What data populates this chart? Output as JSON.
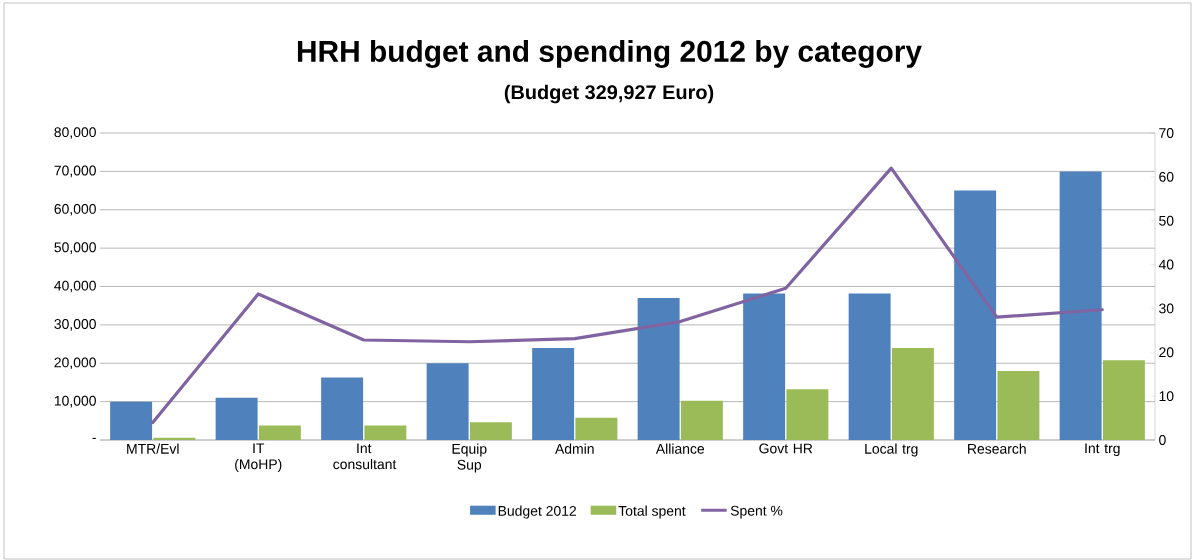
{
  "chart_data": {
    "type": "bar",
    "title": "HRH budget and spending 2012 by category",
    "subtitle": "(Budget 329,927 Euro)",
    "categories": [
      "MTR/Evl",
      "IT (MoHP)",
      "Int consultant",
      "Equip Sup",
      "Admin",
      "Alliance",
      "Govt HR",
      "Local trg",
      "Research",
      "Int trg"
    ],
    "series": [
      {
        "name": "Budget 2012",
        "color": "#4f81bd",
        "values": [
          10000,
          11000,
          16300,
          20000,
          24000,
          37000,
          38200,
          38200,
          65000,
          70000
        ]
      },
      {
        "name": "Total spent",
        "color": "#9bbb59",
        "values": [
          600,
          3800,
          3800,
          4600,
          5800,
          10200,
          13200,
          24000,
          18000,
          20800
        ]
      },
      {
        "name": "Spent %",
        "type": "line",
        "axis": "y2",
        "color": "#8064a2",
        "values": [
          4,
          33.3,
          22.8,
          22.4,
          23.1,
          27,
          34.6,
          62,
          28,
          29.7
        ]
      }
    ],
    "ylim": [
      0,
      80000
    ],
    "yticks": [
      {
        "value": 0,
        "label": "-"
      },
      {
        "value": 10000,
        "label": "10,000"
      },
      {
        "value": 20000,
        "label": "20,000"
      },
      {
        "value": 30000,
        "label": "30,000"
      },
      {
        "value": 40000,
        "label": "40,000"
      },
      {
        "value": 50000,
        "label": "50,000"
      },
      {
        "value": 60000,
        "label": "60,000"
      },
      {
        "value": 70000,
        "label": "70,000"
      },
      {
        "value": 80000,
        "label": "80,000"
      }
    ],
    "y2lim": [
      0,
      70
    ],
    "y2ticks": [
      0,
      10,
      20,
      30,
      40,
      50,
      60,
      70
    ],
    "grid": "y",
    "legend": "bottom",
    "marker": "none",
    "line_style": "solid"
  }
}
